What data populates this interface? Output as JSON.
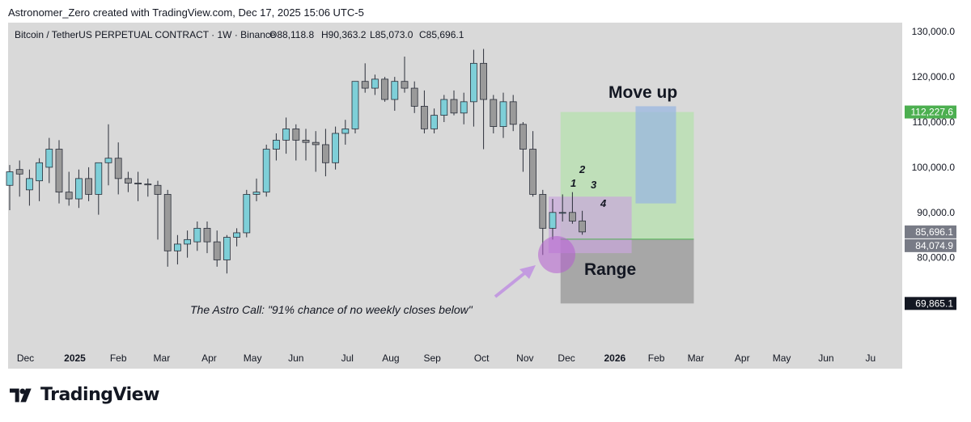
{
  "header": {
    "attribution": "Astronomer_Zero created with TradingView.com, Dec 17, 2025 15:06 UTC-5"
  },
  "legend": {
    "symbol": "Bitcoin / TetherUS PERPETUAL CONTRACT · 1W · Binance",
    "open": "O88,118.8",
    "high": "H90,363.2",
    "low": "L85,073.0",
    "close": "C85,696.1"
  },
  "annotations": {
    "move_up": "Move up",
    "range": "Range",
    "astro_call": "The Astro Call: \"91% chance of no weekly closes below\"",
    "count": [
      "1",
      "2",
      "3",
      "4"
    ]
  },
  "price_badges": [
    {
      "label": "112,227.6",
      "color": "#4caf50"
    },
    {
      "label": "85,696.1",
      "color": "#787b86"
    },
    {
      "label": "84,074.9",
      "color": "#787b86"
    },
    {
      "label": "69,865.1",
      "color": "#131722"
    }
  ],
  "footer": {
    "brand": "TradingView"
  },
  "colors": {
    "bull": "#7ecfd8",
    "bear": "#9a9a9a",
    "background": "#d9d9d9",
    "green_zone": "#b8e0b0",
    "blue_zone": "#9ab7e0",
    "purple_zone": "#c9a6dc",
    "gray_zone": "#9e9e9e"
  },
  "chart_data": {
    "type": "candlestick",
    "title": "Bitcoin / TetherUS PERPETUAL CONTRACT · 1W · Binance",
    "y_axis": {
      "range": [
        69000,
        131000
      ],
      "ticks": [
        "130,000.0",
        "120,000.0",
        "110,000.0",
        "100,000.0",
        "90,000.0",
        "80,000.0"
      ],
      "tick_values": [
        130000,
        120000,
        110000,
        100000,
        90000,
        80000
      ]
    },
    "x_axis": {
      "labels": [
        "Dec",
        "2025",
        "Feb",
        "Mar",
        "Apr",
        "May",
        "Jun",
        "Jul",
        "Aug",
        "Sep",
        "Oct",
        "Nov",
        "Dec",
        "2026",
        "Feb",
        "Mar",
        "Apr",
        "May",
        "Jun",
        "Ju"
      ],
      "label_week_index": [
        1.6,
        6.6,
        11.0,
        15.4,
        20.2,
        24.6,
        29.0,
        34.2,
        38.6,
        42.8,
        47.8,
        52.2,
        56.4,
        61.3,
        65.5,
        69.5,
        74.2,
        78.2,
        82.7,
        87.2
      ]
    },
    "weekly_candles": [
      {
        "o": 96000,
        "h": 100500,
        "l": 90500,
        "c": 99000
      },
      {
        "o": 99500,
        "h": 101500,
        "l": 93500,
        "c": 98500
      },
      {
        "o": 95000,
        "h": 99500,
        "l": 91500,
        "c": 97500
      },
      {
        "o": 97000,
        "h": 102000,
        "l": 92500,
        "c": 101000
      },
      {
        "o": 100000,
        "h": 106500,
        "l": 96500,
        "c": 104000
      },
      {
        "o": 104000,
        "h": 106000,
        "l": 92000,
        "c": 94500
      },
      {
        "o": 94500,
        "h": 99000,
        "l": 91500,
        "c": 93000
      },
      {
        "o": 93000,
        "h": 99500,
        "l": 91000,
        "c": 97500
      },
      {
        "o": 97500,
        "h": 100000,
        "l": 92500,
        "c": 94000
      },
      {
        "o": 94000,
        "h": 101000,
        "l": 89500,
        "c": 101000
      },
      {
        "o": 101000,
        "h": 109500,
        "l": 96000,
        "c": 102000
      },
      {
        "o": 102000,
        "h": 105500,
        "l": 94000,
        "c": 97500
      },
      {
        "o": 97500,
        "h": 99000,
        "l": 94500,
        "c": 96500
      },
      {
        "o": 96500,
        "h": 99000,
        "l": 92500,
        "c": 96300
      },
      {
        "o": 96300,
        "h": 97500,
        "l": 93500,
        "c": 96100
      },
      {
        "o": 96000,
        "h": 97000,
        "l": 84000,
        "c": 94000
      },
      {
        "o": 94000,
        "h": 95000,
        "l": 78000,
        "c": 81500
      },
      {
        "o": 81500,
        "h": 85000,
        "l": 78500,
        "c": 83000
      },
      {
        "o": 83000,
        "h": 86000,
        "l": 80000,
        "c": 84000
      },
      {
        "o": 83500,
        "h": 88000,
        "l": 81500,
        "c": 86500
      },
      {
        "o": 86500,
        "h": 88000,
        "l": 81000,
        "c": 83500
      },
      {
        "o": 83500,
        "h": 86000,
        "l": 78000,
        "c": 79500
      },
      {
        "o": 79500,
        "h": 85000,
        "l": 76500,
        "c": 84500
      },
      {
        "o": 84500,
        "h": 86500,
        "l": 82500,
        "c": 85500
      },
      {
        "o": 85500,
        "h": 95000,
        "l": 84500,
        "c": 94000
      },
      {
        "o": 94000,
        "h": 97500,
        "l": 92500,
        "c": 94500
      },
      {
        "o": 94500,
        "h": 105000,
        "l": 93500,
        "c": 104000
      },
      {
        "o": 104000,
        "h": 107500,
        "l": 101500,
        "c": 106000
      },
      {
        "o": 106000,
        "h": 111000,
        "l": 103000,
        "c": 108500
      },
      {
        "o": 108500,
        "h": 109500,
        "l": 101500,
        "c": 106000
      },
      {
        "o": 106000,
        "h": 108500,
        "l": 101500,
        "c": 105500
      },
      {
        "o": 105500,
        "h": 108000,
        "l": 99000,
        "c": 105000
      },
      {
        "o": 105000,
        "h": 108500,
        "l": 98000,
        "c": 101000
      },
      {
        "o": 101000,
        "h": 109000,
        "l": 99500,
        "c": 107500
      },
      {
        "o": 107500,
        "h": 110500,
        "l": 105000,
        "c": 108500
      },
      {
        "o": 108500,
        "h": 119000,
        "l": 107500,
        "c": 119000
      },
      {
        "o": 119000,
        "h": 123000,
        "l": 116500,
        "c": 117500
      },
      {
        "o": 117500,
        "h": 120500,
        "l": 116000,
        "c": 119500
      },
      {
        "o": 119500,
        "h": 120000,
        "l": 114500,
        "c": 115000
      },
      {
        "o": 115000,
        "h": 120000,
        "l": 112500,
        "c": 119000
      },
      {
        "o": 119000,
        "h": 124500,
        "l": 116500,
        "c": 117500
      },
      {
        "o": 117500,
        "h": 119000,
        "l": 112000,
        "c": 113500
      },
      {
        "o": 113500,
        "h": 117000,
        "l": 107500,
        "c": 108500
      },
      {
        "o": 108500,
        "h": 113000,
        "l": 107500,
        "c": 111500
      },
      {
        "o": 111500,
        "h": 116000,
        "l": 110000,
        "c": 115000
      },
      {
        "o": 115000,
        "h": 117000,
        "l": 111500,
        "c": 112000
      },
      {
        "o": 112000,
        "h": 116500,
        "l": 109500,
        "c": 114500
      },
      {
        "o": 114500,
        "h": 126000,
        "l": 109000,
        "c": 123000
      },
      {
        "o": 123000,
        "h": 126200,
        "l": 104000,
        "c": 115000
      },
      {
        "o": 115000,
        "h": 116000,
        "l": 107500,
        "c": 109000
      },
      {
        "o": 109000,
        "h": 116500,
        "l": 106500,
        "c": 114500
      },
      {
        "o": 114500,
        "h": 116000,
        "l": 108000,
        "c": 109500
      },
      {
        "o": 109500,
        "h": 110000,
        "l": 99000,
        "c": 104000
      },
      {
        "o": 104000,
        "h": 108000,
        "l": 93500,
        "c": 94000
      },
      {
        "o": 94000,
        "h": 95000,
        "l": 80600,
        "c": 86500
      },
      {
        "o": 86500,
        "h": 93000,
        "l": 84000,
        "c": 90000
      },
      {
        "o": 90000,
        "h": 94000,
        "l": 88000,
        "c": 90000
      },
      {
        "o": 90000,
        "h": 94500,
        "l": 87500,
        "c": 88100
      },
      {
        "o": 88118.8,
        "h": 90363.2,
        "l": 85073.0,
        "c": 85696.1
      }
    ],
    "zones": [
      {
        "name": "Move up",
        "from_week": 55.8,
        "to_week": 69.3,
        "low": 84074.9,
        "high": 112227.6,
        "color": "green"
      },
      {
        "name": "Move up target",
        "from_week": 63.4,
        "to_week": 67.5,
        "low": 92000,
        "high": 113500,
        "color": "blue"
      },
      {
        "name": "Range",
        "from_week": 55.8,
        "to_week": 69.3,
        "low": 69865.1,
        "high": 84074.9,
        "color": "gray"
      },
      {
        "name": "purple box",
        "from_week": 54.6,
        "to_week": 63.0,
        "low": 81000,
        "high": 93500,
        "color": "purple"
      }
    ],
    "count_labels": [
      "1",
      "2",
      "3",
      "4"
    ]
  }
}
